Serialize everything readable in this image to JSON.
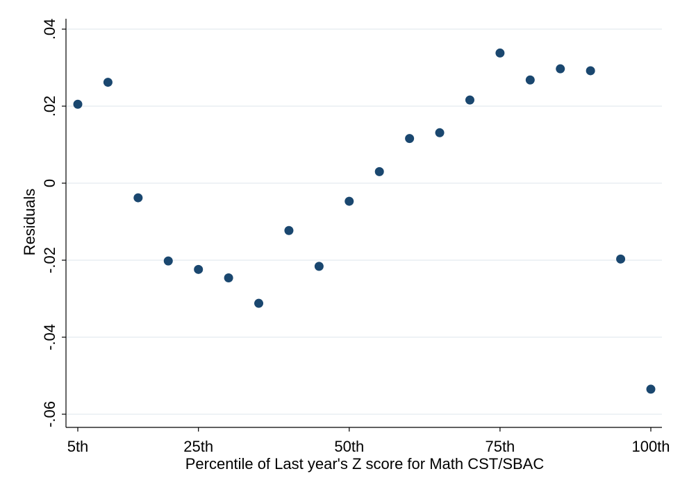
{
  "chart_data": {
    "type": "scatter",
    "title": "",
    "xlabel": "Percentile of Last year's Z score for Math CST/SBAC",
    "ylabel": "Residuals",
    "xlim": [
      5,
      100
    ],
    "ylim": [
      -0.06,
      0.04
    ],
    "x_ticks": [
      {
        "value": 5,
        "label": "5th"
      },
      {
        "value": 25,
        "label": "25th"
      },
      {
        "value": 50,
        "label": "50th"
      },
      {
        "value": 75,
        "label": "75th"
      },
      {
        "value": 100,
        "label": "100th"
      }
    ],
    "y_ticks": [
      {
        "value": -0.06,
        "label": "-.06"
      },
      {
        "value": -0.04,
        "label": "-.04"
      },
      {
        "value": -0.02,
        "label": "-.02"
      },
      {
        "value": 0,
        "label": "0"
      },
      {
        "value": 0.02,
        "label": ".02"
      },
      {
        "value": 0.04,
        "label": ".04"
      }
    ],
    "grid": true,
    "marker_color": "#1a476f",
    "points": [
      {
        "x": 5,
        "y": 0.0205
      },
      {
        "x": 10,
        "y": 0.0262
      },
      {
        "x": 15,
        "y": -0.0038
      },
      {
        "x": 20,
        "y": -0.0202
      },
      {
        "x": 25,
        "y": -0.0224
      },
      {
        "x": 30,
        "y": -0.0246
      },
      {
        "x": 35,
        "y": -0.0312
      },
      {
        "x": 40,
        "y": -0.0123
      },
      {
        "x": 45,
        "y": -0.0216
      },
      {
        "x": 50,
        "y": -0.0047
      },
      {
        "x": 55,
        "y": 0.003
      },
      {
        "x": 60,
        "y": 0.0116
      },
      {
        "x": 65,
        "y": 0.0131
      },
      {
        "x": 70,
        "y": 0.0216
      },
      {
        "x": 75,
        "y": 0.0338
      },
      {
        "x": 80,
        "y": 0.0268
      },
      {
        "x": 85,
        "y": 0.0297
      },
      {
        "x": 90,
        "y": 0.0292
      },
      {
        "x": 95,
        "y": -0.0197
      },
      {
        "x": 100,
        "y": -0.0535
      }
    ]
  }
}
